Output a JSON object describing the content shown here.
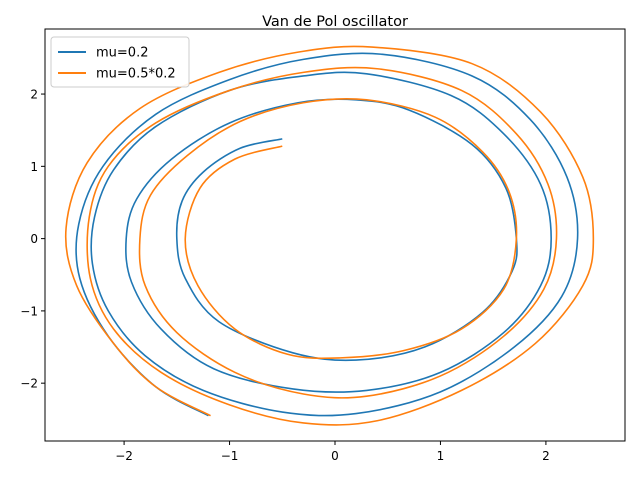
{
  "chart_data": {
    "type": "line",
    "title": "Van de Pol oscillator",
    "xlabel": "",
    "ylabel": "",
    "xlim": [
      -2.75,
      2.75
    ],
    "ylim": [
      -2.8,
      2.9
    ],
    "xticks": [
      -2,
      -1,
      0,
      1,
      2
    ],
    "yticks": [
      -2,
      -1,
      0,
      1,
      2
    ],
    "xtick_labels": [
      "−2",
      "−1",
      "0",
      "1",
      "2"
    ],
    "ytick_labels": [
      "−2",
      "−1",
      "0",
      "1",
      "2"
    ],
    "grid": false,
    "legend": "top-left",
    "series": [
      {
        "name": "mu=0.2",
        "color": "#1f77b4",
        "points": [
          [
            -0.5,
            1.38
          ],
          [
            -0.9,
            1.25
          ],
          [
            -1.25,
            0.92
          ],
          [
            -1.45,
            0.52
          ],
          [
            -1.5,
            0.0
          ],
          [
            -1.42,
            -0.55
          ],
          [
            -1.1,
            -1.15
          ],
          [
            -0.4,
            -1.58
          ],
          [
            0.2,
            -1.68
          ],
          [
            0.85,
            -1.5
          ],
          [
            1.4,
            -1.02
          ],
          [
            1.68,
            -0.45
          ],
          [
            1.72,
            0.0
          ],
          [
            1.62,
            0.7
          ],
          [
            1.3,
            1.3
          ],
          [
            0.7,
            1.78
          ],
          [
            0.2,
            1.92
          ],
          [
            -0.35,
            1.88
          ],
          [
            -1.0,
            1.6
          ],
          [
            -1.55,
            1.1
          ],
          [
            -1.88,
            0.55
          ],
          [
            -1.98,
            0.0
          ],
          [
            -1.93,
            -0.6
          ],
          [
            -1.65,
            -1.25
          ],
          [
            -1.15,
            -1.8
          ],
          [
            -0.4,
            -2.08
          ],
          [
            0.3,
            -2.1
          ],
          [
            1.0,
            -1.85
          ],
          [
            1.6,
            -1.3
          ],
          [
            1.95,
            -0.65
          ],
          [
            2.05,
            0.0
          ],
          [
            1.95,
            0.75
          ],
          [
            1.6,
            1.45
          ],
          [
            1.1,
            1.98
          ],
          [
            0.3,
            2.28
          ],
          [
            -0.3,
            2.25
          ],
          [
            -1.0,
            2.05
          ],
          [
            -1.7,
            1.55
          ],
          [
            -2.1,
            0.95
          ],
          [
            -2.28,
            0.3
          ],
          [
            -2.3,
            -0.35
          ],
          [
            -2.15,
            -1.0
          ],
          [
            -1.8,
            -1.62
          ],
          [
            -1.25,
            -2.1
          ],
          [
            -0.5,
            -2.4
          ],
          [
            0.2,
            -2.42
          ],
          [
            1.0,
            -2.12
          ],
          [
            1.7,
            -1.5
          ],
          [
            2.15,
            -0.8
          ],
          [
            2.3,
            0.0
          ],
          [
            2.2,
            0.85
          ],
          [
            1.85,
            1.65
          ],
          [
            1.3,
            2.25
          ],
          [
            0.45,
            2.55
          ],
          [
            -0.3,
            2.48
          ],
          [
            -1.0,
            2.2
          ],
          [
            -1.7,
            1.72
          ],
          [
            -2.2,
            1.0
          ],
          [
            -2.43,
            0.2
          ],
          [
            -2.42,
            -0.55
          ],
          [
            -2.15,
            -1.35
          ],
          [
            -1.7,
            -2.05
          ],
          [
            -1.2,
            -2.45
          ]
        ]
      },
      {
        "name": "mu=0.5*0.2",
        "color": "#ff7f0e",
        "points": [
          [
            -0.5,
            1.28
          ],
          [
            -0.95,
            1.1
          ],
          [
            -1.28,
            0.7
          ],
          [
            -1.42,
            0.0
          ],
          [
            -1.3,
            -0.65
          ],
          [
            -0.95,
            -1.25
          ],
          [
            -0.45,
            -1.6
          ],
          [
            0.05,
            -1.65
          ],
          [
            0.65,
            -1.55
          ],
          [
            1.2,
            -1.25
          ],
          [
            1.6,
            -0.7
          ],
          [
            1.72,
            0.0
          ],
          [
            1.65,
            0.65
          ],
          [
            1.4,
            1.2
          ],
          [
            0.95,
            1.68
          ],
          [
            0.3,
            1.92
          ],
          [
            -0.3,
            1.88
          ],
          [
            -0.9,
            1.62
          ],
          [
            -1.4,
            1.15
          ],
          [
            -1.75,
            0.6
          ],
          [
            -1.85,
            0.0
          ],
          [
            -1.8,
            -0.65
          ],
          [
            -1.5,
            -1.3
          ],
          [
            -0.95,
            -1.85
          ],
          [
            -0.3,
            -2.15
          ],
          [
            0.3,
            -2.18
          ],
          [
            1.0,
            -1.9
          ],
          [
            1.6,
            -1.35
          ],
          [
            1.98,
            -0.7
          ],
          [
            2.1,
            0.0
          ],
          [
            2.02,
            0.75
          ],
          [
            1.72,
            1.45
          ],
          [
            1.2,
            2.05
          ],
          [
            0.4,
            2.35
          ],
          [
            -0.3,
            2.3
          ],
          [
            -1.0,
            2.05
          ],
          [
            -1.7,
            1.6
          ],
          [
            -2.15,
            1.0
          ],
          [
            -2.33,
            0.3
          ],
          [
            -2.32,
            -0.55
          ],
          [
            -2.1,
            -1.25
          ],
          [
            -1.65,
            -1.85
          ],
          [
            -1.0,
            -2.3
          ],
          [
            -0.3,
            -2.55
          ],
          [
            0.4,
            -2.52
          ],
          [
            1.2,
            -2.1
          ],
          [
            1.9,
            -1.45
          ],
          [
            2.35,
            -0.65
          ],
          [
            2.45,
            0.0
          ],
          [
            2.35,
            0.85
          ],
          [
            1.95,
            1.75
          ],
          [
            1.3,
            2.42
          ],
          [
            0.35,
            2.65
          ],
          [
            -0.35,
            2.58
          ],
          [
            -1.1,
            2.3
          ],
          [
            -1.85,
            1.8
          ],
          [
            -2.35,
            1.05
          ],
          [
            -2.55,
            0.15
          ],
          [
            -2.45,
            -0.65
          ],
          [
            -2.1,
            -1.45
          ],
          [
            -1.7,
            -2.05
          ],
          [
            -1.18,
            -2.45
          ]
        ]
      }
    ]
  }
}
